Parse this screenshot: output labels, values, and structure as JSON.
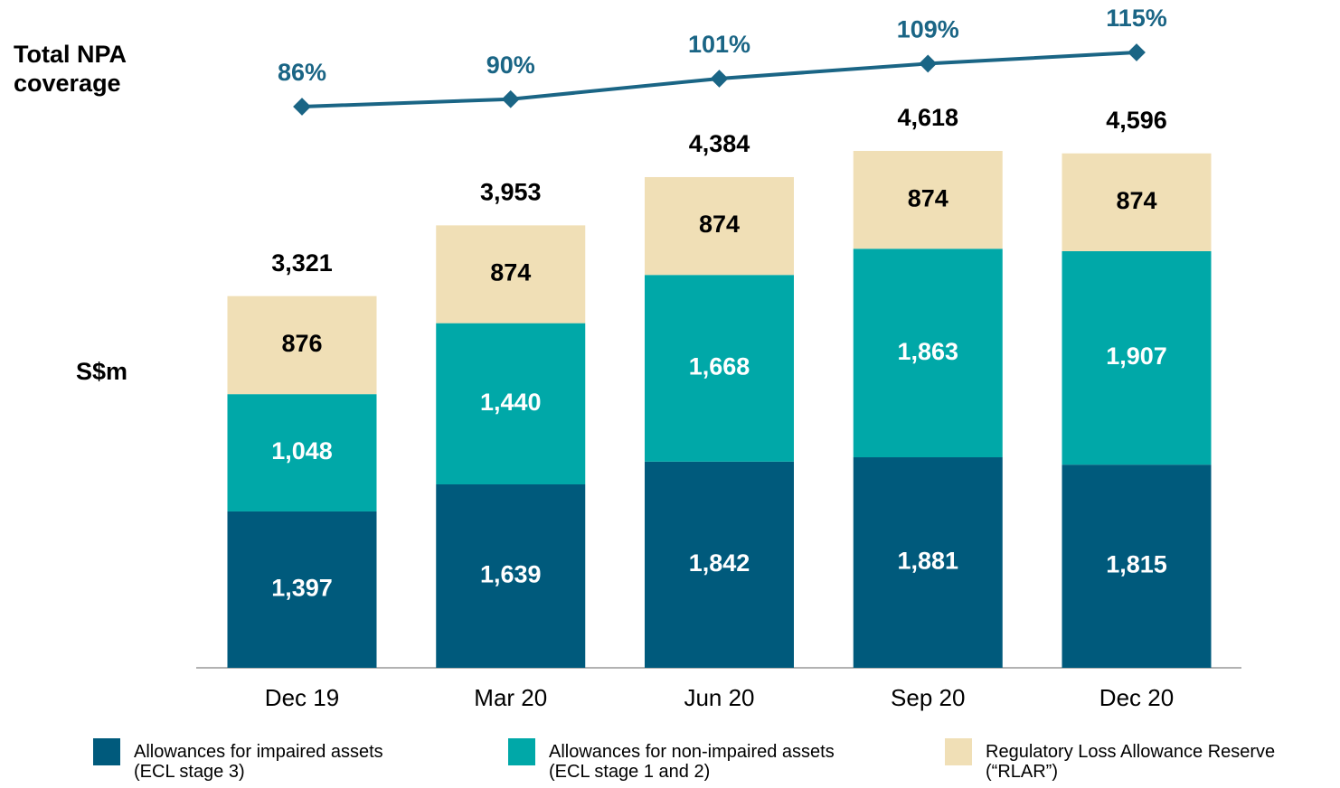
{
  "chart_data": [
    {
      "type": "bar",
      "stacked": true,
      "ylabel": "S$m",
      "categories": [
        "Dec 19",
        "Mar 20",
        "Jun 20",
        "Sep 20",
        "Dec 20"
      ],
      "series": [
        {
          "name": "Allowances for impaired assets\n(ECL stage 3)",
          "color": "#005a7c",
          "label_color": "#ffffff",
          "values": [
            1397,
            1639,
            1842,
            1881,
            1815
          ],
          "value_labels": [
            "1,397",
            "1,639",
            "1,842",
            "1,881",
            "1,815"
          ]
        },
        {
          "name": "Allowances for non-impaired assets\n(ECL stage 1 and 2)",
          "color": "#00a8a8",
          "label_color": "#ffffff",
          "values": [
            1048,
            1440,
            1668,
            1863,
            1907
          ],
          "value_labels": [
            "1,048",
            "1,440",
            "1,668",
            "1,863",
            "1,907"
          ]
        },
        {
          "name": "Regulatory Loss Allowance Reserve\n(“RLAR”)",
          "color": "#f0dfb6",
          "label_color": "#000000",
          "values": [
            876,
            874,
            874,
            874,
            874
          ]
        }
      ],
      "totals": {
        "values": [
          3321,
          3953,
          4384,
          4618,
          4596
        ],
        "value_labels": [
          "3,321",
          "3,953",
          "4,384",
          "4,618",
          "4,596"
        ]
      }
    },
    {
      "type": "line",
      "title": "Total NPA\ncoverage",
      "color": "#1a6585",
      "values": [
        86,
        90,
        101,
        109,
        115
      ],
      "value_labels": [
        "86%",
        "90%",
        "101%",
        "109%",
        "115%"
      ]
    }
  ]
}
